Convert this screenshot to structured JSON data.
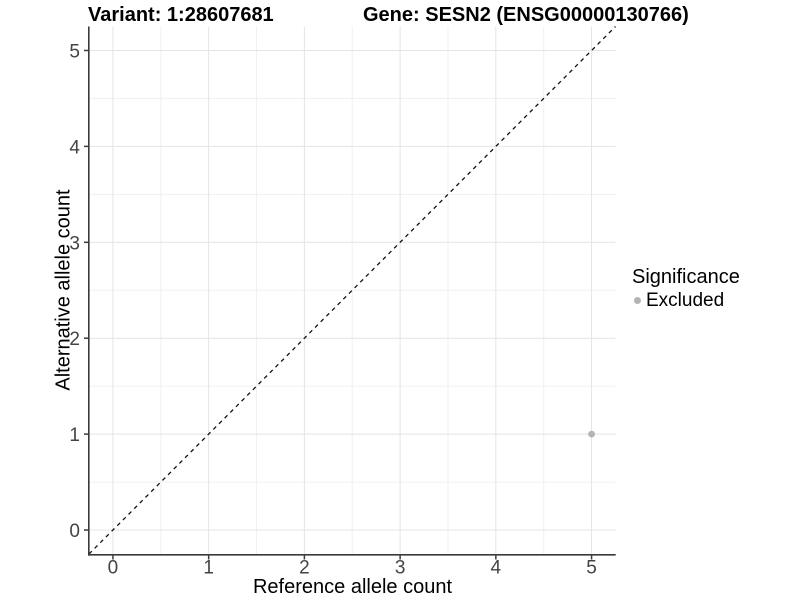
{
  "chart_data": {
    "type": "scatter",
    "title_left": "Variant: 1:28607681",
    "title_right": "Gene: SESN2 (ENSG00000130766)",
    "xlabel": "Reference allele count",
    "ylabel": "Alternative allele count",
    "xlim": [
      -0.25,
      5.25
    ],
    "ylim": [
      -0.25,
      5.25
    ],
    "xticks": [
      0,
      1,
      2,
      3,
      4,
      5
    ],
    "yticks": [
      0,
      1,
      2,
      3,
      4,
      5
    ],
    "minor_gridlines_x": [
      0.5,
      1.5,
      2.5,
      3.5,
      4.5
    ],
    "minor_gridlines_y": [
      0.5,
      1.5,
      2.5,
      3.5,
      4.5
    ],
    "grid": "major+minor",
    "identity_line": {
      "type": "y=x",
      "style": "dashed",
      "color": "#111111"
    },
    "series": [
      {
        "name": "Excluded",
        "color": "#B4B4B4",
        "points": [
          {
            "x": 5,
            "y": 1
          }
        ]
      }
    ],
    "legend": {
      "title": "Significance",
      "position": "right",
      "entries": [
        {
          "label": "Excluded",
          "color": "#B4B4B4"
        }
      ]
    }
  },
  "colors": {
    "background": "#FFFFFF",
    "axis_line": "#3A3A3A",
    "tick_mark": "#3A3A3A",
    "tick_label": "#444444",
    "grid_major": "#E4E4E4",
    "grid_minor": "#F0F0F0"
  }
}
